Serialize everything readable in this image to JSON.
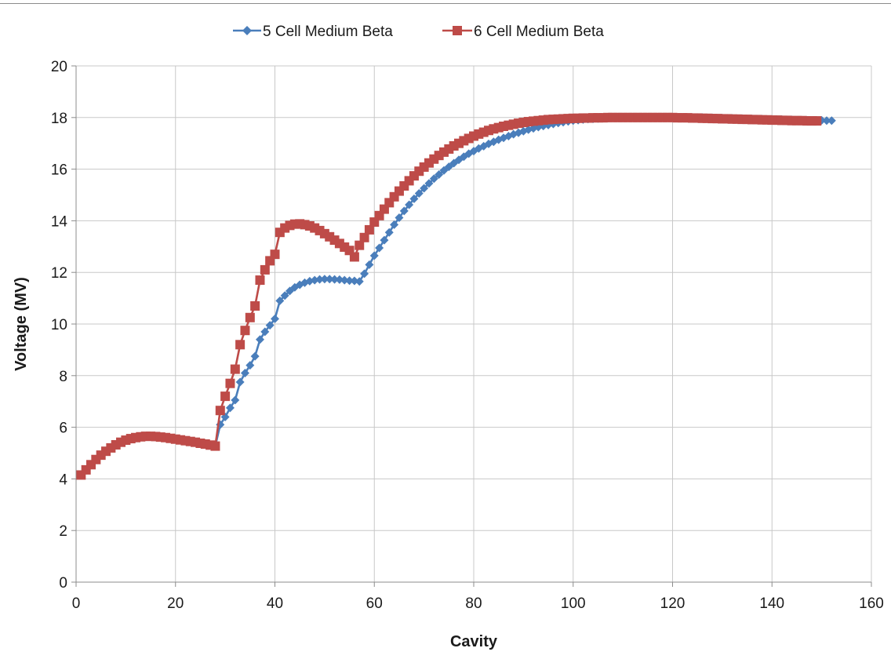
{
  "chart_data": {
    "type": "line",
    "title": "",
    "xlabel": "Cavity",
    "ylabel": "Voltage (MV)",
    "xlim": [
      0,
      160
    ],
    "ylim": [
      0,
      20
    ],
    "x_ticks": [
      "0",
      "20",
      "40",
      "60",
      "80",
      "100",
      "120",
      "140",
      "160"
    ],
    "y_ticks": [
      "0",
      "2",
      "4",
      "6",
      "8",
      "10",
      "12",
      "14",
      "16",
      "18",
      "20"
    ],
    "grid": true,
    "legend_position": "top-center",
    "series": [
      {
        "name": "5 Cell Medium Beta",
        "color": "#4a7ebb",
        "marker": "diamond",
        "points": [
          [
            1,
            4.15
          ],
          [
            2,
            4.35
          ],
          [
            3,
            4.55
          ],
          [
            4,
            4.75
          ],
          [
            5,
            4.92
          ],
          [
            6,
            5.07
          ],
          [
            7,
            5.2
          ],
          [
            8,
            5.32
          ],
          [
            9,
            5.42
          ],
          [
            10,
            5.5
          ],
          [
            11,
            5.56
          ],
          [
            12,
            5.6
          ],
          [
            13,
            5.63
          ],
          [
            14,
            5.65
          ],
          [
            15,
            5.65
          ],
          [
            16,
            5.64
          ],
          [
            17,
            5.62
          ],
          [
            18,
            5.6
          ],
          [
            19,
            5.57
          ],
          [
            20,
            5.54
          ],
          [
            21,
            5.51
          ],
          [
            22,
            5.48
          ],
          [
            23,
            5.45
          ],
          [
            24,
            5.42
          ],
          [
            25,
            5.38
          ],
          [
            26,
            5.35
          ],
          [
            27,
            5.31
          ],
          [
            28,
            5.27
          ],
          [
            29,
            6.1
          ],
          [
            30,
            6.4
          ],
          [
            31,
            6.75
          ],
          [
            32,
            7.05
          ],
          [
            33,
            7.75
          ],
          [
            34,
            8.1
          ],
          [
            35,
            8.4
          ],
          [
            36,
            8.75
          ],
          [
            37,
            9.4
          ],
          [
            38,
            9.7
          ],
          [
            39,
            9.95
          ],
          [
            40,
            10.2
          ],
          [
            41,
            10.9
          ],
          [
            42,
            11.1
          ],
          [
            43,
            11.28
          ],
          [
            44,
            11.42
          ],
          [
            45,
            11.52
          ],
          [
            46,
            11.6
          ],
          [
            47,
            11.66
          ],
          [
            48,
            11.7
          ],
          [
            49,
            11.73
          ],
          [
            50,
            11.74
          ],
          [
            51,
            11.74
          ],
          [
            52,
            11.73
          ],
          [
            53,
            11.72
          ],
          [
            54,
            11.7
          ],
          [
            55,
            11.68
          ],
          [
            56,
            11.67
          ],
          [
            57,
            11.65
          ],
          [
            58,
            11.95
          ],
          [
            59,
            12.3
          ],
          [
            60,
            12.65
          ],
          [
            61,
            12.95
          ],
          [
            62,
            13.25
          ],
          [
            63,
            13.55
          ],
          [
            64,
            13.85
          ],
          [
            65,
            14.12
          ],
          [
            66,
            14.38
          ],
          [
            67,
            14.62
          ],
          [
            68,
            14.85
          ],
          [
            69,
            15.06
          ],
          [
            70,
            15.26
          ],
          [
            71,
            15.45
          ],
          [
            72,
            15.63
          ],
          [
            73,
            15.79
          ],
          [
            74,
            15.95
          ],
          [
            75,
            16.09
          ],
          [
            76,
            16.23
          ],
          [
            77,
            16.36
          ],
          [
            78,
            16.48
          ],
          [
            79,
            16.6
          ],
          [
            80,
            16.7
          ],
          [
            81,
            16.8
          ],
          [
            82,
            16.89
          ],
          [
            83,
            16.98
          ],
          [
            84,
            17.06
          ],
          [
            85,
            17.14
          ],
          [
            86,
            17.21
          ],
          [
            87,
            17.28
          ],
          [
            88,
            17.35
          ],
          [
            89,
            17.41
          ],
          [
            90,
            17.47
          ],
          [
            91,
            17.53
          ],
          [
            92,
            17.58
          ],
          [
            93,
            17.63
          ],
          [
            94,
            17.67
          ],
          [
            95,
            17.71
          ],
          [
            96,
            17.75
          ],
          [
            97,
            17.79
          ],
          [
            98,
            17.82
          ],
          [
            99,
            17.85
          ],
          [
            100,
            17.88
          ],
          [
            101,
            17.9
          ],
          [
            102,
            17.92
          ],
          [
            103,
            17.94
          ],
          [
            104,
            17.95
          ],
          [
            105,
            17.96
          ],
          [
            106,
            17.97
          ],
          [
            107,
            17.98
          ],
          [
            108,
            17.99
          ],
          [
            109,
            18.0
          ],
          [
            110,
            18.0
          ],
          [
            111,
            18.0
          ],
          [
            112,
            18.0
          ],
          [
            113,
            18.0
          ],
          [
            114,
            18.0
          ],
          [
            115,
            18.0
          ],
          [
            116,
            18.0
          ],
          [
            117,
            18.0
          ],
          [
            118,
            18.0
          ],
          [
            119,
            18.0
          ],
          [
            120,
            18.0
          ],
          [
            121,
            18.0
          ],
          [
            122,
            18.0
          ],
          [
            123,
            18.0
          ],
          [
            124,
            18.0
          ],
          [
            125,
            18.0
          ],
          [
            126,
            18.0
          ],
          [
            127,
            17.99
          ],
          [
            128,
            17.99
          ],
          [
            129,
            17.98
          ],
          [
            130,
            17.98
          ],
          [
            131,
            17.97
          ],
          [
            132,
            17.97
          ],
          [
            133,
            17.96
          ],
          [
            134,
            17.96
          ],
          [
            135,
            17.95
          ],
          [
            136,
            17.95
          ],
          [
            137,
            17.94
          ],
          [
            138,
            17.94
          ],
          [
            139,
            17.93
          ],
          [
            140,
            17.93
          ],
          [
            141,
            17.92
          ],
          [
            142,
            17.92
          ],
          [
            143,
            17.91
          ],
          [
            144,
            17.91
          ],
          [
            145,
            17.9
          ],
          [
            146,
            17.9
          ],
          [
            147,
            17.9
          ],
          [
            148,
            17.89
          ],
          [
            149,
            17.89
          ],
          [
            150,
            17.89
          ],
          [
            151,
            17.88
          ],
          [
            152,
            17.88
          ]
        ]
      },
      {
        "name": "6 Cell Medium Beta",
        "color": "#be4b48",
        "marker": "square",
        "points": [
          [
            1,
            4.15
          ],
          [
            2,
            4.35
          ],
          [
            3,
            4.55
          ],
          [
            4,
            4.75
          ],
          [
            5,
            4.92
          ],
          [
            6,
            5.07
          ],
          [
            7,
            5.2
          ],
          [
            8,
            5.32
          ],
          [
            9,
            5.42
          ],
          [
            10,
            5.5
          ],
          [
            11,
            5.56
          ],
          [
            12,
            5.6
          ],
          [
            13,
            5.63
          ],
          [
            14,
            5.65
          ],
          [
            15,
            5.65
          ],
          [
            16,
            5.64
          ],
          [
            17,
            5.62
          ],
          [
            18,
            5.6
          ],
          [
            19,
            5.57
          ],
          [
            20,
            5.54
          ],
          [
            21,
            5.51
          ],
          [
            22,
            5.48
          ],
          [
            23,
            5.45
          ],
          [
            24,
            5.42
          ],
          [
            25,
            5.38
          ],
          [
            26,
            5.35
          ],
          [
            27,
            5.31
          ],
          [
            28,
            5.27
          ],
          [
            29,
            6.65
          ],
          [
            30,
            7.2
          ],
          [
            31,
            7.7
          ],
          [
            32,
            8.25
          ],
          [
            33,
            9.2
          ],
          [
            34,
            9.75
          ],
          [
            35,
            10.25
          ],
          [
            36,
            10.7
          ],
          [
            37,
            11.7
          ],
          [
            38,
            12.1
          ],
          [
            39,
            12.45
          ],
          [
            40,
            12.7
          ],
          [
            41,
            13.55
          ],
          [
            42,
            13.72
          ],
          [
            43,
            13.82
          ],
          [
            44,
            13.87
          ],
          [
            45,
            13.88
          ],
          [
            46,
            13.85
          ],
          [
            47,
            13.8
          ],
          [
            48,
            13.72
          ],
          [
            49,
            13.62
          ],
          [
            50,
            13.5
          ],
          [
            51,
            13.38
          ],
          [
            52,
            13.25
          ],
          [
            53,
            13.12
          ],
          [
            54,
            12.98
          ],
          [
            55,
            12.85
          ],
          [
            56,
            12.6
          ],
          [
            57,
            13.05
          ],
          [
            58,
            13.35
          ],
          [
            59,
            13.65
          ],
          [
            60,
            13.95
          ],
          [
            61,
            14.2
          ],
          [
            62,
            14.45
          ],
          [
            63,
            14.7
          ],
          [
            64,
            14.93
          ],
          [
            65,
            15.15
          ],
          [
            66,
            15.35
          ],
          [
            67,
            15.55
          ],
          [
            68,
            15.74
          ],
          [
            69,
            15.92
          ],
          [
            70,
            16.08
          ],
          [
            71,
            16.24
          ],
          [
            72,
            16.39
          ],
          [
            73,
            16.53
          ],
          [
            74,
            16.66
          ],
          [
            75,
            16.78
          ],
          [
            76,
            16.9
          ],
          [
            77,
            17.0
          ],
          [
            78,
            17.1
          ],
          [
            79,
            17.19
          ],
          [
            80,
            17.28
          ],
          [
            81,
            17.36
          ],
          [
            82,
            17.43
          ],
          [
            83,
            17.5
          ],
          [
            84,
            17.56
          ],
          [
            85,
            17.61
          ],
          [
            86,
            17.66
          ],
          [
            87,
            17.7
          ],
          [
            88,
            17.74
          ],
          [
            89,
            17.78
          ],
          [
            90,
            17.81
          ],
          [
            91,
            17.84
          ],
          [
            92,
            17.86
          ],
          [
            93,
            17.88
          ],
          [
            94,
            17.9
          ],
          [
            95,
            17.92
          ],
          [
            96,
            17.93
          ],
          [
            97,
            17.94
          ],
          [
            98,
            17.95
          ],
          [
            99,
            17.96
          ],
          [
            100,
            17.97
          ],
          [
            101,
            17.97
          ],
          [
            102,
            17.98
          ],
          [
            103,
            17.98
          ],
          [
            104,
            17.99
          ],
          [
            105,
            17.99
          ],
          [
            106,
            17.99
          ],
          [
            107,
            18.0
          ],
          [
            108,
            18.0
          ],
          [
            109,
            18.0
          ],
          [
            110,
            18.0
          ],
          [
            111,
            18.0
          ],
          [
            112,
            18.0
          ],
          [
            113,
            18.0
          ],
          [
            114,
            18.0
          ],
          [
            115,
            18.0
          ],
          [
            116,
            18.0
          ],
          [
            117,
            18.0
          ],
          [
            118,
            18.0
          ],
          [
            119,
            18.0
          ],
          [
            120,
            18.0
          ],
          [
            121,
            17.99
          ],
          [
            122,
            17.99
          ],
          [
            123,
            17.99
          ],
          [
            124,
            17.98
          ],
          [
            125,
            17.98
          ],
          [
            126,
            17.97
          ],
          [
            127,
            17.97
          ],
          [
            128,
            17.96
          ],
          [
            129,
            17.96
          ],
          [
            130,
            17.95
          ],
          [
            131,
            17.95
          ],
          [
            132,
            17.94
          ],
          [
            133,
            17.94
          ],
          [
            134,
            17.93
          ],
          [
            135,
            17.93
          ],
          [
            136,
            17.92
          ],
          [
            137,
            17.92
          ],
          [
            138,
            17.91
          ],
          [
            139,
            17.91
          ],
          [
            140,
            17.9
          ],
          [
            141,
            17.9
          ],
          [
            142,
            17.89
          ],
          [
            143,
            17.89
          ],
          [
            144,
            17.88
          ],
          [
            145,
            17.88
          ],
          [
            146,
            17.88
          ],
          [
            147,
            17.87
          ],
          [
            148,
            17.87
          ],
          [
            149,
            17.87
          ]
        ]
      }
    ]
  }
}
